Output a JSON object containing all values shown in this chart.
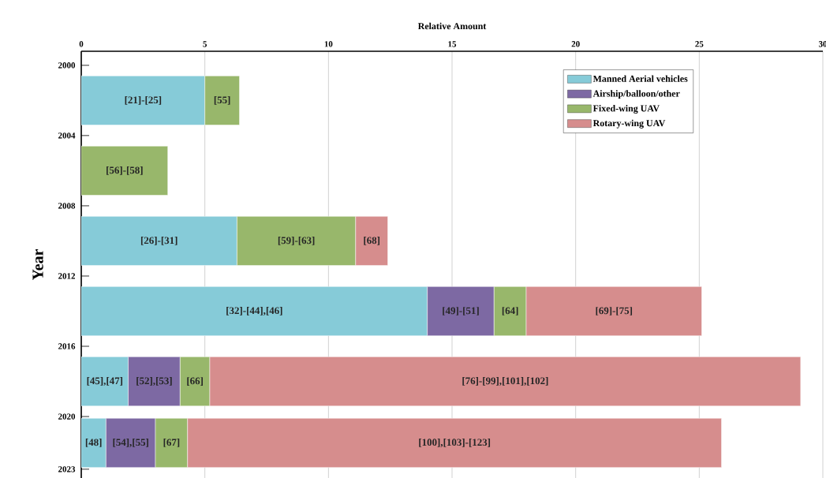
{
  "chart_data": {
    "type": "bar",
    "orientation": "horizontal",
    "stacked": true,
    "xlabel": "Relative Amount",
    "ylabel": "Year",
    "x": [
      2002,
      2006,
      2010,
      2014,
      2018,
      2021.5
    ],
    "xlim": [
      0,
      30
    ],
    "xticks": [
      0,
      5,
      10,
      15,
      20,
      25,
      30
    ],
    "ylim": [
      2023.5,
      1999.2
    ],
    "yticks": [
      2000,
      2004,
      2008,
      2012,
      2016,
      2020,
      2023
    ],
    "grid": "x",
    "legend": "top right",
    "series": [
      {
        "name": "Manned Aerial vehicles",
        "color": "#86cbd8",
        "values": [
          5.0,
          null,
          6.3,
          14.0,
          1.9,
          1.0
        ]
      },
      {
        "name": "Airship/balloon/other",
        "color": "#7d69a3",
        "values": [
          null,
          null,
          null,
          2.7,
          2.1,
          2.0
        ]
      },
      {
        "name": "Fixed-wing UAV",
        "color": "#98b76b",
        "values": [
          1.4,
          3.5,
          4.8,
          1.3,
          1.2,
          1.3
        ]
      },
      {
        "name": "Rotary-wing UAV",
        "color": "#d68d8d",
        "values": [
          null,
          null,
          1.3,
          7.1,
          23.9,
          21.6
        ]
      }
    ],
    "annotations": [
      "[21]-[25]",
      "[55]",
      "[56]-[58]",
      "[26]-[31]",
      "[59]-[63]",
      "[68]",
      "[32]-[44],[46]",
      "[49]-[51]",
      "[64]",
      "[69]-[75]",
      "[45],[47]",
      "[52],[53]",
      "[66]",
      "[76]-[99],[101],[102]",
      "[48]",
      "[54],[55]",
      "[67]",
      "[100],[103]-[123]"
    ]
  }
}
